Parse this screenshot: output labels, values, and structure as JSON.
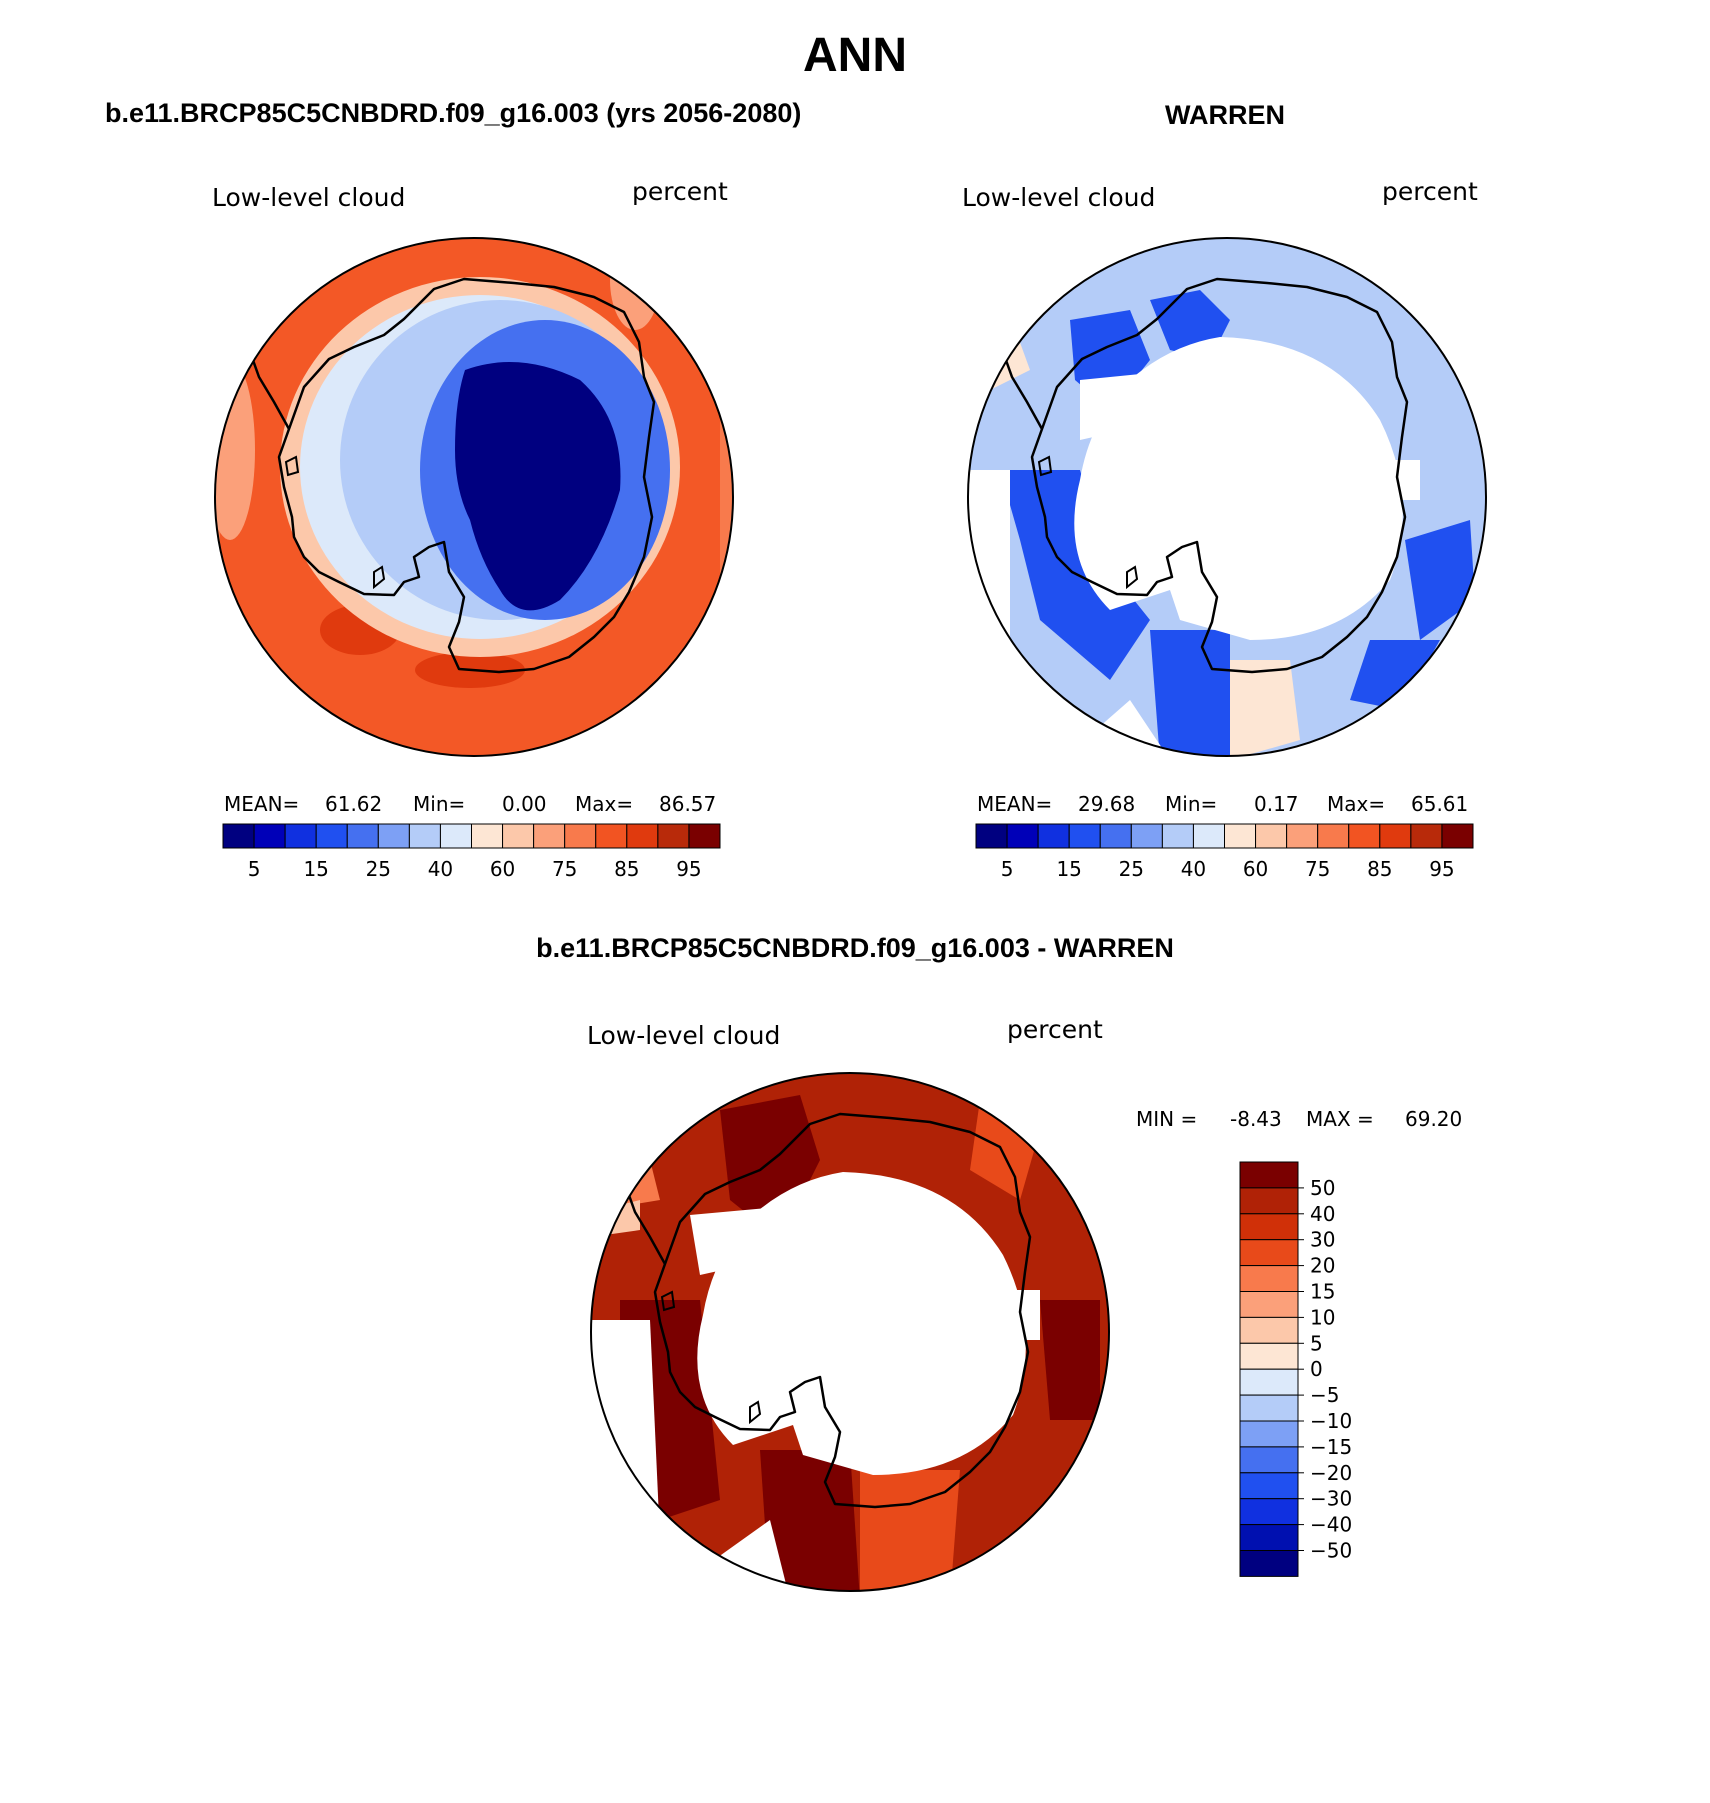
{
  "title": "ANN",
  "colors": {
    "abs_scale": [
      "#000080",
      "#0000b8",
      "#1030e0",
      "#2050f0",
      "#4570f0",
      "#7da0f5",
      "#b4ccf8",
      "#dce9fa",
      "#fde6d4",
      "#fcc8aa",
      "#fba07a",
      "#f87a4c",
      "#f25422",
      "#e03a0e",
      "#b82a0a",
      "#7a0000"
    ],
    "diff_scale": [
      "#000080",
      "#0010b0",
      "#1030e0",
      "#2050f0",
      "#4570f0",
      "#7da0f5",
      "#b4ccf8",
      "#dce9fa",
      "#fde6d4",
      "#fcc8aa",
      "#fba07a",
      "#f87a4c",
      "#e84a1a",
      "#d03008",
      "#b02206",
      "#7a0000"
    ],
    "coast": "#000000",
    "background": "#ffffff"
  },
  "panels": [
    {
      "id": "model",
      "subtitle": "b.e11.BRCP85C5CNBDRD.f09_g16.003 (yrs 2056-2080)",
      "variable": "Low-level cloud",
      "units": "percent",
      "stats": {
        "mean_label": "MEAN=",
        "mean": "61.62",
        "min_label": "Min=",
        "min": "0.00",
        "max_label": "Max=",
        "max": "86.57"
      },
      "colorbar_labels": [
        "5",
        "15",
        "25",
        "40",
        "60",
        "75",
        "85",
        "95"
      ],
      "field_description_levels": {
        "outer_ocean": 75,
        "mid_ocean": 85,
        "continent_interior": 2
      }
    },
    {
      "id": "obs",
      "subtitle": "WARREN",
      "variable": "Low-level cloud",
      "units": "percent",
      "stats": {
        "mean_label": "MEAN=",
        "mean": "29.68",
        "min_label": "Min=",
        "min": "0.17",
        "max_label": "Max=",
        "max": "65.61"
      },
      "colorbar_labels": [
        "5",
        "15",
        "25",
        "40",
        "60",
        "75",
        "85",
        "95"
      ]
    },
    {
      "id": "diff",
      "subtitle": "b.e11.BRCP85C5CNBDRD.f09_g16.003 - WARREN",
      "variable": "Low-level cloud",
      "units": "percent",
      "stats": {
        "min_label": "MIN =",
        "min": "-8.43",
        "max_label": "MAX =",
        "max": "69.20"
      },
      "colorbar_labels": [
        "50",
        "40",
        "30",
        "20",
        "15",
        "10",
        "5",
        "0",
        "−5",
        "−10",
        "−15",
        "−20",
        "−30",
        "−40",
        "−50"
      ]
    }
  ]
}
